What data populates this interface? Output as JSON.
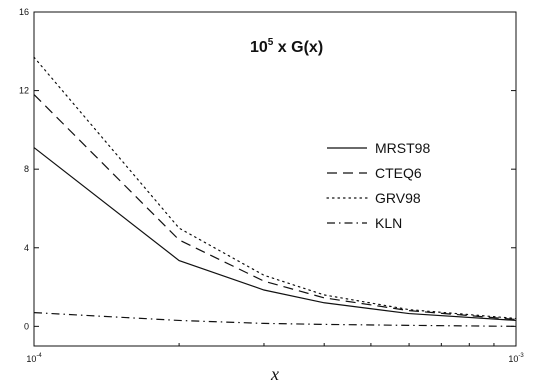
{
  "chart_data": {
    "type": "line",
    "title": {
      "prefix": "10",
      "sup": "5",
      "suffix": " x G(x)"
    },
    "xlabel": "x",
    "ylabel": "",
    "xscale": "log",
    "xlim": [
      0.0001,
      0.001
    ],
    "ylim": [
      -1,
      16
    ],
    "x_ticks": [
      {
        "base": "10",
        "exp": "-4",
        "value": 0.0001
      },
      {
        "base": "10",
        "exp": "-3",
        "value": 0.001
      }
    ],
    "y_ticks": [
      {
        "label": "0",
        "value": 0
      },
      {
        "label": "4",
        "value": 4
      },
      {
        "label": "8",
        "value": 8
      },
      {
        "label": "12",
        "value": 12
      },
      {
        "label": "16",
        "value": 16
      }
    ],
    "grid": false,
    "legend": {
      "position": "right"
    },
    "x": [
      0.0001,
      0.0002,
      0.0003,
      0.0004,
      0.0006,
      0.001
    ],
    "series": [
      {
        "name": "MRST98",
        "dash": "solid",
        "color": "#111111",
        "values": [
          9.1,
          3.35,
          1.85,
          1.2,
          0.65,
          0.3
        ]
      },
      {
        "name": "CTEQ6",
        "dash": "dashed",
        "color": "#111111",
        "values": [
          11.8,
          4.4,
          2.3,
          1.45,
          0.8,
          0.35
        ]
      },
      {
        "name": "GRV98",
        "dash": "dotted",
        "color": "#111111",
        "values": [
          13.7,
          5.0,
          2.6,
          1.6,
          0.85,
          0.4
        ]
      },
      {
        "name": "KLN",
        "dash": "dashdot",
        "color": "#111111",
        "values": [
          0.7,
          0.3,
          0.15,
          0.1,
          0.05,
          0.0
        ]
      }
    ]
  }
}
